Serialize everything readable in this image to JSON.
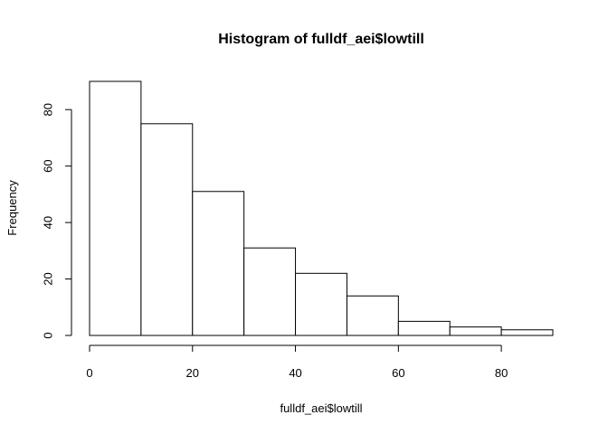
{
  "chart_data": {
    "type": "bar",
    "histogram": true,
    "title": "Histogram of fulldf_aei$lowtill",
    "xlabel": "fulldf_aei$lowtill",
    "ylabel": "Frequency",
    "bins": [
      {
        "start": 0,
        "end": 10,
        "count": 90
      },
      {
        "start": 10,
        "end": 20,
        "count": 75
      },
      {
        "start": 20,
        "end": 30,
        "count": 51
      },
      {
        "start": 30,
        "end": 40,
        "count": 31
      },
      {
        "start": 40,
        "end": 50,
        "count": 22
      },
      {
        "start": 50,
        "end": 60,
        "count": 14
      },
      {
        "start": 60,
        "end": 70,
        "count": 5
      },
      {
        "start": 70,
        "end": 80,
        "count": 3
      },
      {
        "start": 80,
        "end": 90,
        "count": 2
      }
    ],
    "xlim": [
      0,
      90
    ],
    "ylim": [
      0,
      90
    ],
    "xticks": [
      0,
      20,
      40,
      60,
      80
    ],
    "yticks": [
      0,
      20,
      40,
      60,
      80
    ],
    "bar_fill": "#ffffff",
    "bar_stroke": "#000000",
    "grid": false,
    "legend": "none"
  }
}
